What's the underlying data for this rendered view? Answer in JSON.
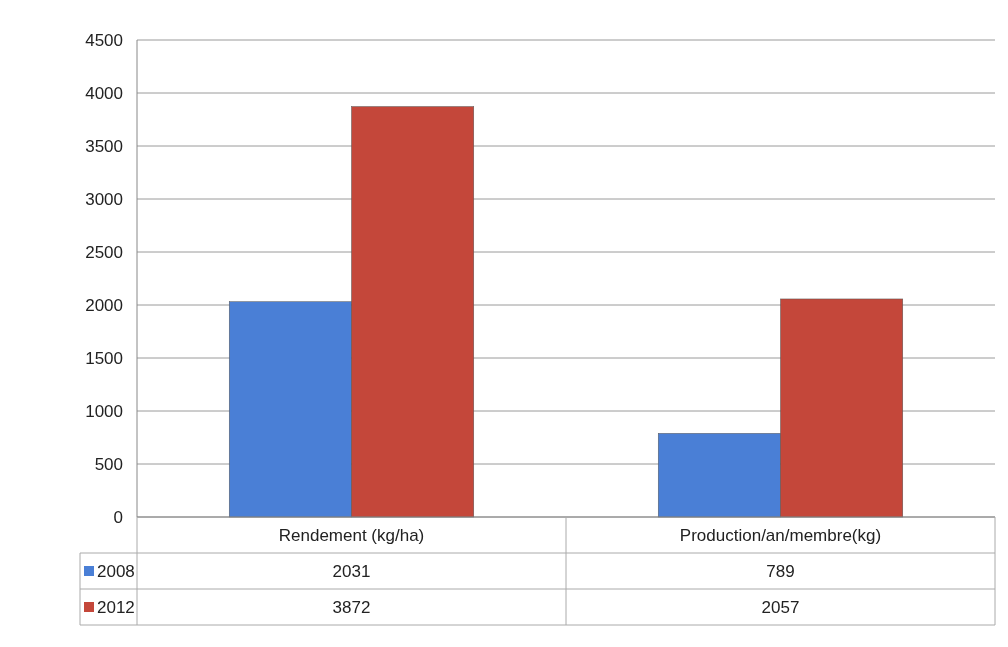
{
  "chart_data": {
    "type": "bar",
    "categories": [
      "Rendement (kg/ha)",
      "Production/an/membre(kg)"
    ],
    "series": [
      {
        "name": "2008",
        "color": "#4a7fd6",
        "values": [
          2031,
          789
        ]
      },
      {
        "name": "2012",
        "color": "#c4473a",
        "values": [
          3872,
          2057
        ]
      }
    ],
    "ylim": [
      0,
      4500
    ],
    "yticks": [
      0,
      500,
      1000,
      1500,
      2000,
      2500,
      3000,
      3500,
      4000,
      4500
    ],
    "grid": "y",
    "legend": "bottom",
    "data_labels": true
  }
}
